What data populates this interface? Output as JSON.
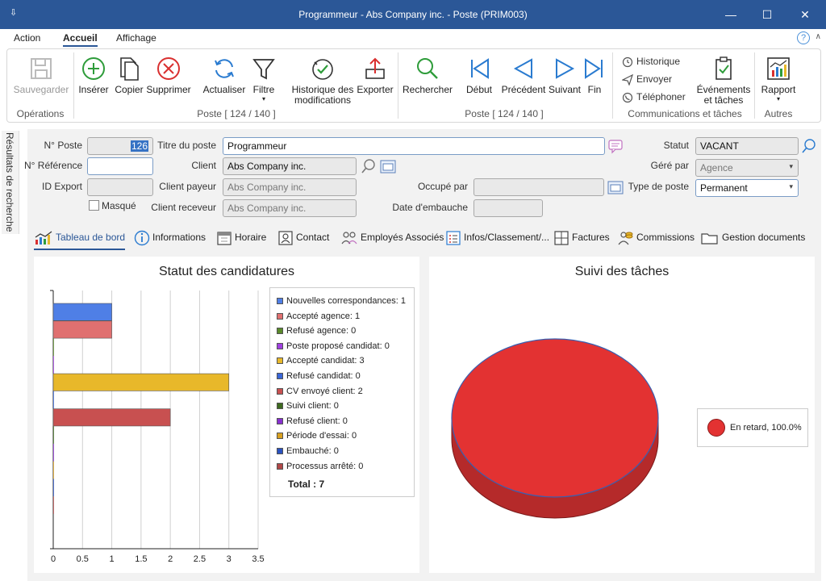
{
  "window": {
    "title": "Programmeur - Abs Company inc. - Poste (PRIM003)"
  },
  "menu": {
    "items": [
      "Action",
      "Accueil",
      "Affichage"
    ]
  },
  "ribbon": {
    "save": "Sauvegarder",
    "insert": "Insérer",
    "copy": "Copier",
    "delete": "Supprimer",
    "refresh": "Actualiser",
    "filter": "Filtre",
    "history_line1": "Historique des",
    "history_line2": "modifications",
    "export": "Exporter",
    "search": "Rechercher",
    "first": "Début",
    "previous": "Précédent",
    "next": "Suivant",
    "last": "Fin",
    "comm_history": "Historique",
    "send": "Envoyer",
    "phone": "Téléphoner",
    "events_line1": "Événements",
    "events_line2": "et tâches",
    "report": "Rapport",
    "group_operations": "Opérations",
    "group_poste1": "Poste [ 124 / 140 ]",
    "group_poste2": "Poste [ 124 / 140 ]",
    "group_comm": "Communications et tâches",
    "group_other": "Autres"
  },
  "side_tab": "Résultats de recherche",
  "form": {
    "no_poste_label": "N° Poste",
    "no_poste_value": "126",
    "no_ref_label": "N° Référence",
    "no_ref_value": "",
    "id_export_label": "ID Export",
    "id_export_value": "",
    "masque_label": "Masqué",
    "titre_label": "Titre du poste",
    "titre_value": "Programmeur",
    "client_label": "Client",
    "client_value": "Abs Company inc.",
    "client_payeur_label": "Client payeur",
    "client_payeur_value": "Abs Company inc.",
    "client_receveur_label": "Client receveur",
    "client_receveur_value": "Abs Company inc.",
    "occupe_label": "Occupé par",
    "occupe_value": "",
    "date_embauche_label": "Date d'embauche",
    "date_embauche_value": "",
    "statut_label": "Statut",
    "statut_value": "VACANT",
    "gere_label": "Géré par",
    "gere_value": "Agence",
    "type_label": "Type de poste",
    "type_value": "Permanent"
  },
  "tabs": [
    "Tableau de bord",
    "Informations",
    "Horaire",
    "Contact",
    "Employés Associés",
    "Infos/Classement/...",
    "Factures",
    "Commissions",
    "Gestion documents"
  ],
  "chart_data": [
    {
      "type": "bar",
      "orientation": "horizontal",
      "title": "Statut des candidatures",
      "categories": [
        "Nouvelles correspondances",
        "Accepté agence",
        "Refusé agence",
        "Poste proposé candidat",
        "Accepté candidat",
        "Refusé candidat",
        "CV envoyé client",
        "Suivi client",
        "Refusé client",
        "Période d'essai",
        "Embauché",
        "Processus arrêté"
      ],
      "values": [
        1,
        1,
        0,
        0,
        3,
        0,
        2,
        0,
        0,
        0,
        0,
        0
      ],
      "colors": [
        "#4f7fe6",
        "#e07070",
        "#5a8a2a",
        "#a040e0",
        "#e8b82a",
        "#3a66d6",
        "#c85050",
        "#3e6a20",
        "#8830d0",
        "#d8a020",
        "#2a52c0",
        "#b04848"
      ],
      "legend_labels": [
        "Nouvelles correspondances: 1",
        "Accepté agence: 1",
        "Refusé agence: 0",
        "Poste proposé candidat: 0",
        "Accepté candidat: 3",
        "Refusé candidat: 0",
        "CV envoyé client: 2",
        "Suivi client: 0",
        "Refusé client: 0",
        "Période d'essai: 0",
        "Embauché: 0",
        "Processus arrêté: 0"
      ],
      "total_label": "Total : 7",
      "xlim": [
        0,
        3.5
      ],
      "xticks": [
        "0",
        "0.5",
        "1",
        "1.5",
        "2",
        "2.5",
        "3",
        "3.5"
      ],
      "grid": true,
      "legend_position": "right"
    },
    {
      "type": "pie",
      "title": "Suivi des tâches",
      "slices": [
        {
          "label": "En retard",
          "value": 100.0,
          "color": "#e33232"
        }
      ],
      "legend_label": "En retard, 100.0%",
      "legend_position": "right"
    }
  ]
}
